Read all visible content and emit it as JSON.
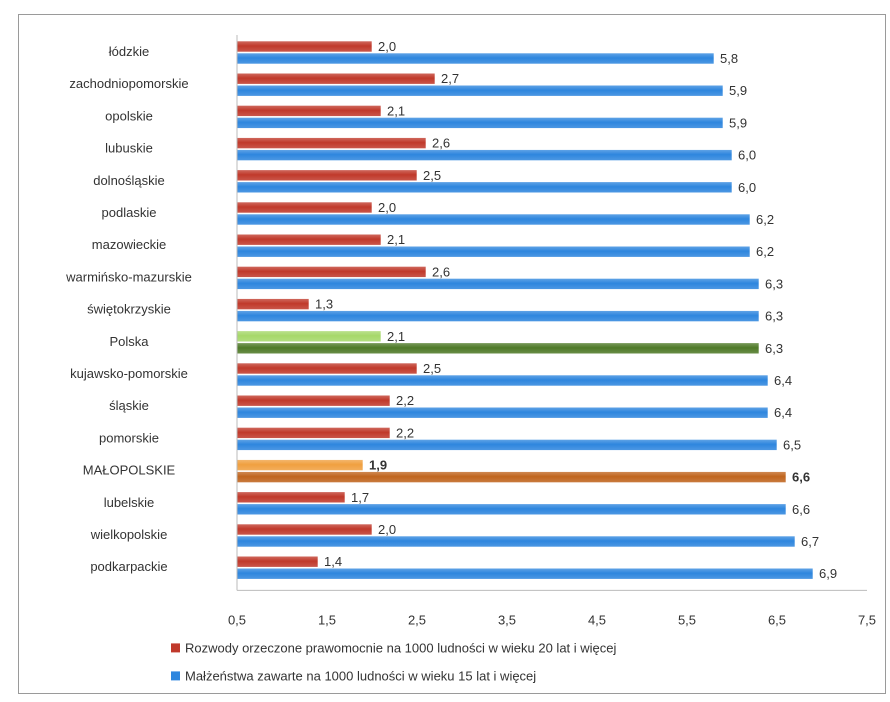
{
  "chart_data": {
    "type": "bar",
    "orientation": "horizontal",
    "categories": [
      "łódzkie",
      "zachodniopomorskie",
      "opolskie",
      "lubuskie",
      "dolnośląskie",
      "podlaskie",
      "mazowieckie",
      "warmińsko-mazurskie",
      "świętokrzyskie",
      "Polska",
      "kujawsko-pomorskie",
      "śląskie",
      "pomorskie",
      "MAŁOPOLSKIE",
      "lubelskie",
      "wielkopolskie",
      "podkarpackie"
    ],
    "series": [
      {
        "name": "Rozwody orzeczone prawomocnie na 1000 ludności w wieku 20 lat i więcej",
        "color": "#c0392b",
        "values": [
          2.0,
          2.7,
          2.1,
          2.6,
          2.5,
          2.0,
          2.1,
          2.6,
          1.3,
          2.1,
          2.5,
          2.2,
          2.2,
          1.9,
          1.7,
          2.0,
          1.4
        ],
        "labels": [
          "2,0",
          "2,7",
          "2,1",
          "2,6",
          "2,5",
          "2,0",
          "2,1",
          "2,6",
          "1,3",
          "2,1",
          "2,5",
          "2,2",
          "2,2",
          "1,9",
          "1,7",
          "2,0",
          "1,4"
        ]
      },
      {
        "name": "Małżeństwa zawarte na 1000 ludności w wieku 15 lat i więcej",
        "color": "#2e86de",
        "values": [
          5.8,
          5.9,
          5.9,
          6.0,
          6.0,
          6.2,
          6.2,
          6.3,
          6.3,
          6.3,
          6.4,
          6.4,
          6.5,
          6.6,
          6.6,
          6.7,
          6.9
        ],
        "labels": [
          "5,8",
          "5,9",
          "5,9",
          "6,0",
          "6,0",
          "6,2",
          "6,2",
          "6,3",
          "6,3",
          "6,3",
          "6,4",
          "6,4",
          "6,5",
          "6,6",
          "6,6",
          "6,7",
          "6,9"
        ]
      }
    ],
    "highlights": [
      {
        "category": "Polska",
        "colors": [
          "#a6d86a",
          "#4f7a28"
        ]
      },
      {
        "category": "MAŁOPOLSKIE",
        "colors": [
          "#f0a040",
          "#c0651e"
        ],
        "bold": true
      }
    ],
    "xlim": [
      0.5,
      7.5
    ],
    "xticks": [
      0.5,
      1.5,
      2.5,
      3.5,
      4.5,
      5.5,
      6.5,
      7.5
    ],
    "xtick_labels": [
      "0,5",
      "1,5",
      "2,5",
      "3,5",
      "4,5",
      "5,5",
      "6,5",
      "7,5"
    ],
    "grid": false,
    "legend_position": "bottom",
    "title": "",
    "xlabel": "",
    "ylabel": ""
  }
}
